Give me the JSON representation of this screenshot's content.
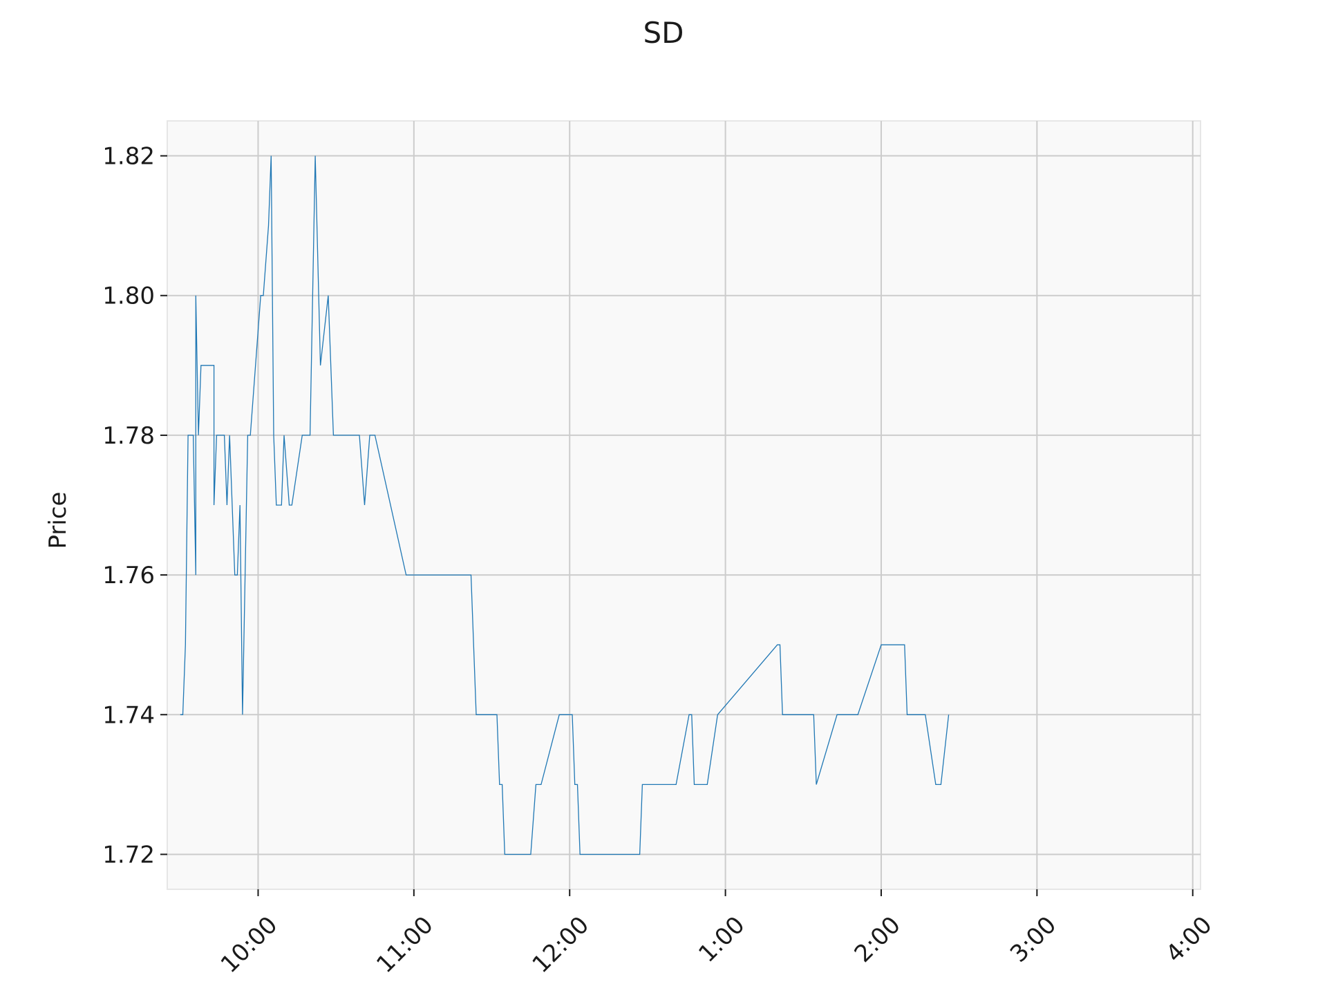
{
  "chart_data": {
    "type": "line",
    "title": "SD",
    "xlabel": "",
    "ylabel": "Price",
    "xlim": [
      "9:25",
      "4:03"
    ],
    "ylim": [
      1.715,
      1.825
    ],
    "grid": true,
    "x_ticks": [
      "10:00",
      "11:00",
      "12:00",
      "1:00",
      "2:00",
      "3:00",
      "4:00"
    ],
    "y_ticks": [
      "1.72",
      "1.74",
      "1.76",
      "1.78",
      "1.80",
      "1.82"
    ],
    "colors": {
      "line": "#1f77b4",
      "plot_bg": "#f9f9f9",
      "grid": "#cccccc",
      "spine": "#e6e6e6"
    },
    "series": [
      {
        "x": [
          "9:30",
          "9:31",
          "9:32",
          "9:32",
          "9:33",
          "9:34",
          "9:35",
          "9:36",
          "9:36",
          "9:37",
          "9:37",
          "9:38",
          "9:38",
          "9:39",
          "9:43",
          "9:43",
          "9:44",
          "9:46",
          "9:47",
          "9:48",
          "9:49",
          "9:51",
          "9:52",
          "9:53",
          "9:54",
          "9:56",
          "9:57",
          "9:59",
          "9:59",
          "10:01",
          "10:01",
          "10:02",
          "10:04",
          "10:05",
          "10:06",
          "10:07",
          "10:09",
          "10:10",
          "10:12",
          "10:13",
          "10:17",
          "10:20",
          "10:22",
          "10:24",
          "10:27",
          "10:29",
          "10:30",
          "10:34",
          "10:39",
          "10:41",
          "10:43",
          "10:44",
          "10:45",
          "10:57",
          "11:00",
          "11:13",
          "11:18",
          "11:20",
          "11:22",
          "11:24",
          "11:26",
          "11:27",
          "11:29",
          "11:29",
          "11:30",
          "11:32",
          "11:33",
          "11:34",
          "11:35",
          "11:39",
          "11:45",
          "11:47",
          "11:49",
          "11:56",
          "12:01",
          "12:02",
          "12:03",
          "12:04",
          "12:26",
          "12:27",
          "12:28",
          "12:29",
          "12:30",
          "12:34",
          "12:40",
          "12:41",
          "12:46",
          "12:47",
          "12:48",
          "12:49",
          "12:53",
          "12:57",
          "13:20",
          "13:21",
          "13:22",
          "13:32",
          "13:33",
          "13:34",
          "13:35",
          "13:43",
          "13:51",
          "14:00",
          "14:09",
          "14:10",
          "14:15",
          "14:17",
          "14:21",
          "14:22",
          "14:23",
          "14:26"
        ],
        "y": [
          1.74,
          1.74,
          1.75,
          1.75,
          1.78,
          1.78,
          1.78,
          1.76,
          1.8,
          1.78,
          1.78,
          1.79,
          1.79,
          1.79,
          1.79,
          1.77,
          1.78,
          1.78,
          1.78,
          1.77,
          1.78,
          1.76,
          1.76,
          1.77,
          1.74,
          1.78,
          1.78,
          1.79,
          1.79,
          1.8,
          1.8,
          1.8,
          1.81,
          1.82,
          1.78,
          1.77,
          1.77,
          1.78,
          1.77,
          1.77,
          1.78,
          1.78,
          1.82,
          1.79,
          1.8,
          1.78,
          1.78,
          1.78,
          1.78,
          1.77,
          1.78,
          1.78,
          1.78,
          1.76,
          1.76,
          1.76,
          1.76,
          1.76,
          1.76,
          1.74,
          1.74,
          1.74,
          1.74,
          1.74,
          1.74,
          1.74,
          1.73,
          1.73,
          1.72,
          1.72,
          1.72,
          1.73,
          1.73,
          1.74,
          1.74,
          1.73,
          1.73,
          1.72,
          1.72,
          1.72,
          1.73,
          1.73,
          1.73,
          1.73,
          1.73,
          1.73,
          1.74,
          1.74,
          1.73,
          1.73,
          1.73,
          1.74,
          1.75,
          1.75,
          1.74,
          1.74,
          1.74,
          1.74,
          1.73,
          1.74,
          1.74,
          1.75,
          1.75,
          1.74,
          1.74,
          1.74,
          1.73,
          1.73,
          1.73,
          1.74
        ]
      }
    ]
  }
}
